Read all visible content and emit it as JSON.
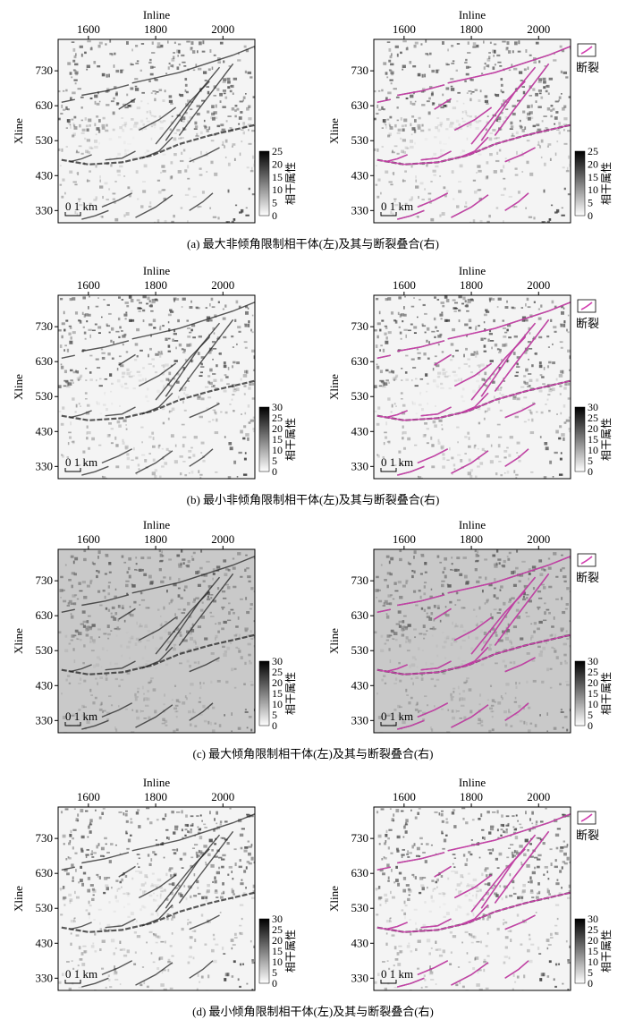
{
  "chart_data": [
    {
      "type": "heatmap",
      "label": "(a)",
      "caption": "(a) 最大非倾角限制相干体(左)及其与断裂叠合(右)",
      "xlabel": "Inline",
      "ylabel": "Xline",
      "x_ticks": [
        1600,
        1800,
        2000
      ],
      "y_ticks": [
        730,
        630,
        530,
        430,
        330
      ],
      "xlim": [
        1510,
        2095
      ],
      "ylim": [
        295,
        820
      ],
      "colorbar": {
        "label": "相干属性",
        "ticks": [
          25,
          20,
          15,
          10,
          5,
          0
        ],
        "range": [
          0,
          25
        ]
      },
      "scale_bar": "0  1 km",
      "legend": [
        "断裂"
      ],
      "background": "light"
    },
    {
      "type": "heatmap",
      "label": "(b)",
      "caption": "(b) 最小非倾角限制相干体(左)及其与断裂叠合(右)",
      "xlabel": "Inline",
      "ylabel": "Xline",
      "x_ticks": [
        1600,
        1800,
        2000
      ],
      "y_ticks": [
        730,
        630,
        530,
        430,
        330
      ],
      "xlim": [
        1510,
        2095
      ],
      "ylim": [
        295,
        820
      ],
      "colorbar": {
        "label": "相干属性",
        "ticks": [
          30,
          25,
          20,
          15,
          10,
          5,
          0
        ],
        "range": [
          0,
          30
        ]
      },
      "scale_bar": "0  1 km",
      "legend": [
        "断裂"
      ],
      "background": "light"
    },
    {
      "type": "heatmap",
      "label": "(c)",
      "caption": "(c) 最大倾角限制相干体(左)及其与断裂叠合(右)",
      "xlabel": "Inline",
      "ylabel": "Xline",
      "x_ticks": [
        1600,
        1800,
        2000
      ],
      "y_ticks": [
        730,
        630,
        530,
        430,
        330
      ],
      "xlim": [
        1510,
        2095
      ],
      "ylim": [
        295,
        820
      ],
      "colorbar": {
        "label": "相干属性",
        "ticks": [
          30,
          25,
          20,
          15,
          10,
          5,
          0
        ],
        "range": [
          0,
          30
        ]
      },
      "scale_bar": "0  1 km",
      "legend": [
        "断裂"
      ],
      "background": "grey"
    },
    {
      "type": "heatmap",
      "label": "(d)",
      "caption": "(d) 最小倾角限制相干体(左)及其与断裂叠合(右)",
      "xlabel": "Inline",
      "ylabel": "Xline",
      "x_ticks": [
        1600,
        1800,
        2000
      ],
      "y_ticks": [
        730,
        630,
        530,
        430,
        330
      ],
      "xlim": [
        1510,
        2095
      ],
      "ylim": [
        295,
        820
      ],
      "colorbar": {
        "label": "相干属性",
        "ticks": [
          30,
          25,
          20,
          15,
          10,
          5,
          0
        ],
        "range": [
          0,
          30
        ]
      },
      "scale_bar": "0  1 km",
      "legend": [
        "断裂"
      ],
      "background": "light"
    }
  ],
  "faults": [
    [
      [
        1520,
        475
      ],
      [
        1600,
        462
      ],
      [
        1700,
        468
      ],
      [
        1790,
        488
      ],
      [
        1870,
        520
      ],
      [
        1960,
        545
      ],
      [
        2095,
        575
      ]
    ],
    [
      [
        1730,
        695
      ],
      [
        1800,
        710
      ],
      [
        1870,
        725
      ],
      [
        1950,
        750
      ],
      [
        2030,
        775
      ],
      [
        2095,
        800
      ]
    ],
    [
      [
        1580,
        660
      ],
      [
        1650,
        672
      ],
      [
        1720,
        690
      ]
    ],
    [
      [
        1750,
        560
      ],
      [
        1810,
        590
      ],
      [
        1860,
        625
      ]
    ],
    [
      [
        1800,
        520
      ],
      [
        1850,
        580
      ],
      [
        1900,
        640
      ],
      [
        1960,
        700
      ]
    ],
    [
      [
        1830,
        530
      ],
      [
        1880,
        600
      ],
      [
        1930,
        670
      ],
      [
        1990,
        740
      ]
    ],
    [
      [
        1870,
        545
      ],
      [
        1920,
        610
      ],
      [
        1975,
        680
      ],
      [
        2030,
        750
      ]
    ],
    [
      [
        1760,
        480
      ],
      [
        1810,
        500
      ],
      [
        1850,
        540
      ]
    ],
    [
      [
        1650,
        475
      ],
      [
        1700,
        480
      ],
      [
        1740,
        500
      ]
    ],
    [
      [
        1545,
        470
      ],
      [
        1580,
        478
      ],
      [
        1610,
        490
      ]
    ],
    [
      [
        1900,
        470
      ],
      [
        1950,
        490
      ],
      [
        1990,
        510
      ]
    ],
    [
      [
        1640,
        340
      ],
      [
        1690,
        360
      ],
      [
        1730,
        380
      ]
    ],
    [
      [
        1740,
        310
      ],
      [
        1800,
        340
      ],
      [
        1850,
        375
      ]
    ],
    [
      [
        1580,
        305
      ],
      [
        1620,
        315
      ],
      [
        1660,
        330
      ]
    ],
    [
      [
        1900,
        330
      ],
      [
        1940,
        355
      ],
      [
        1970,
        380
      ]
    ],
    [
      [
        1520,
        640
      ],
      [
        1560,
        648
      ]
    ],
    [
      [
        1690,
        620
      ],
      [
        1740,
        650
      ]
    ]
  ],
  "colors": {
    "fault": "#d23fb0",
    "colorbar_top": "#000000",
    "colorbar_bottom": "#ffffff"
  }
}
